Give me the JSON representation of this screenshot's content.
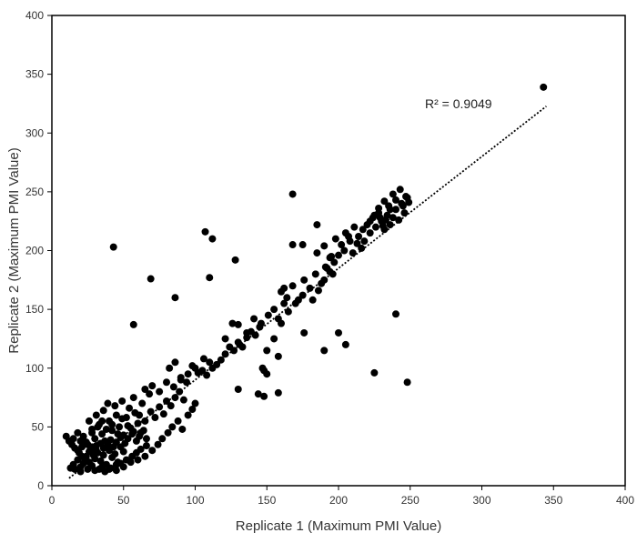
{
  "chart_data": {
    "type": "scatter",
    "title": "",
    "xlabel": "Replicate 1 (Maximum PMI Value)",
    "ylabel": "Replicate 2 (Maximum PMI Value)",
    "xlim": [
      0,
      400
    ],
    "ylim": [
      0,
      400
    ],
    "xticks": [
      "0",
      "50",
      "100",
      "150",
      "200",
      "250",
      "300",
      "350",
      "400"
    ],
    "yticks": [
      "0",
      "50",
      "100",
      "150",
      "200",
      "250",
      "300",
      "350",
      "400"
    ],
    "grid": false,
    "legend": "none",
    "marker_color": "#000000",
    "trendline": {
      "style": "dotted linear",
      "x_range": [
        12,
        345
      ],
      "slope": 0.95,
      "intercept": -5,
      "r2_label": "R² = 0.9049"
    },
    "series": [
      {
        "points": [
          [
            13,
            15
          ],
          [
            15,
            18
          ],
          [
            16,
            14
          ],
          [
            18,
            22
          ],
          [
            20,
            16
          ],
          [
            22,
            19
          ],
          [
            24,
            25
          ],
          [
            26,
            20
          ],
          [
            28,
            17
          ],
          [
            30,
            23
          ],
          [
            32,
            28
          ],
          [
            34,
            21
          ],
          [
            36,
            26
          ],
          [
            38,
            18
          ],
          [
            40,
            30
          ],
          [
            42,
            24
          ],
          [
            44,
            27
          ],
          [
            46,
            20
          ],
          [
            48,
            33
          ],
          [
            50,
            29
          ],
          [
            15,
            40
          ],
          [
            18,
            45
          ],
          [
            20,
            38
          ],
          [
            22,
            42
          ],
          [
            25,
            35
          ],
          [
            28,
            48
          ],
          [
            30,
            40
          ],
          [
            33,
            52
          ],
          [
            35,
            44
          ],
          [
            37,
            38
          ],
          [
            40,
            55
          ],
          [
            42,
            47
          ],
          [
            45,
            60
          ],
          [
            47,
            50
          ],
          [
            50,
            43
          ],
          [
            52,
            58
          ],
          [
            55,
            49
          ],
          [
            58,
            62
          ],
          [
            60,
            53
          ],
          [
            62,
            45
          ],
          [
            18,
            30
          ],
          [
            21,
            33
          ],
          [
            24,
            37
          ],
          [
            27,
            31
          ],
          [
            29,
            26
          ],
          [
            31,
            34
          ],
          [
            34,
            36
          ],
          [
            36,
            32
          ],
          [
            39,
            35
          ],
          [
            41,
            39
          ],
          [
            43,
            33
          ],
          [
            45,
            37
          ],
          [
            48,
            41
          ],
          [
            51,
            36
          ],
          [
            53,
            40
          ],
          [
            56,
            44
          ],
          [
            59,
            38
          ],
          [
            61,
            42
          ],
          [
            64,
            47
          ],
          [
            66,
            40
          ],
          [
            20,
            12
          ],
          [
            25,
            14
          ],
          [
            30,
            13
          ],
          [
            35,
            16
          ],
          [
            40,
            14
          ],
          [
            45,
            18
          ],
          [
            50,
            16
          ],
          [
            55,
            20
          ],
          [
            60,
            22
          ],
          [
            65,
            25
          ],
          [
            26,
            55
          ],
          [
            31,
            60
          ],
          [
            36,
            64
          ],
          [
            39,
            70
          ],
          [
            44,
            68
          ],
          [
            49,
            72
          ],
          [
            54,
            66
          ],
          [
            57,
            75
          ],
          [
            63,
            70
          ],
          [
            68,
            78
          ],
          [
            28,
            45
          ],
          [
            32,
            50
          ],
          [
            35,
            55
          ],
          [
            38,
            48
          ],
          [
            42,
            52
          ],
          [
            46,
            44
          ],
          [
            49,
            57
          ],
          [
            53,
            51
          ],
          [
            57,
            46
          ],
          [
            61,
            60
          ],
          [
            65,
            55
          ],
          [
            69,
            63
          ],
          [
            72,
            58
          ],
          [
            75,
            67
          ],
          [
            78,
            61
          ],
          [
            80,
            72
          ],
          [
            83,
            68
          ],
          [
            86,
            75
          ],
          [
            89,
            80
          ],
          [
            92,
            73
          ],
          [
            70,
            30
          ],
          [
            74,
            35
          ],
          [
            77,
            40
          ],
          [
            81,
            45
          ],
          [
            84,
            50
          ],
          [
            88,
            55
          ],
          [
            91,
            48
          ],
          [
            95,
            60
          ],
          [
            98,
            65
          ],
          [
            100,
            70
          ],
          [
            65,
            82
          ],
          [
            70,
            85
          ],
          [
            75,
            80
          ],
          [
            80,
            88
          ],
          [
            85,
            84
          ],
          [
            90,
            90
          ],
          [
            95,
            95
          ],
          [
            100,
            100
          ],
          [
            105,
            98
          ],
          [
            110,
            105
          ],
          [
            82,
            100
          ],
          [
            86,
            105
          ],
          [
            90,
            92
          ],
          [
            94,
            88
          ],
          [
            98,
            102
          ],
          [
            102,
            96
          ],
          [
            106,
            108
          ],
          [
            108,
            94
          ],
          [
            112,
            100
          ],
          [
            115,
            103
          ],
          [
            118,
            107
          ],
          [
            121,
            112
          ],
          [
            124,
            118
          ],
          [
            127,
            115
          ],
          [
            130,
            122
          ],
          [
            133,
            118
          ],
          [
            136,
            126
          ],
          [
            139,
            131
          ],
          [
            142,
            128
          ],
          [
            145,
            135
          ],
          [
            121,
            125
          ],
          [
            126,
            138
          ],
          [
            131,
            120
          ],
          [
            136,
            130
          ],
          [
            141,
            142
          ],
          [
            146,
            138
          ],
          [
            151,
            145
          ],
          [
            155,
            150
          ],
          [
            158,
            142
          ],
          [
            162,
            155
          ],
          [
            160,
            165
          ],
          [
            164,
            160
          ],
          [
            168,
            170
          ],
          [
            172,
            158
          ],
          [
            176,
            175
          ],
          [
            180,
            168
          ],
          [
            184,
            180
          ],
          [
            188,
            172
          ],
          [
            192,
            185
          ],
          [
            196,
            180
          ],
          [
            150,
            115
          ],
          [
            155,
            125
          ],
          [
            160,
            138
          ],
          [
            165,
            148
          ],
          [
            170,
            155
          ],
          [
            175,
            162
          ],
          [
            182,
            158
          ],
          [
            186,
            166
          ],
          [
            190,
            175
          ],
          [
            194,
            182
          ],
          [
            185,
            198
          ],
          [
            190,
            204
          ],
          [
            195,
            195
          ],
          [
            198,
            210
          ],
          [
            202,
            205
          ],
          [
            205,
            215
          ],
          [
            208,
            208
          ],
          [
            211,
            220
          ],
          [
            214,
            212
          ],
          [
            217,
            218
          ],
          [
            220,
            222
          ],
          [
            222,
            215
          ],
          [
            224,
            228
          ],
          [
            226,
            220
          ],
          [
            228,
            232
          ],
          [
            230,
            225
          ],
          [
            232,
            218
          ],
          [
            234,
            230
          ],
          [
            236,
            222
          ],
          [
            238,
            228
          ],
          [
            240,
            235
          ],
          [
            242,
            226
          ],
          [
            244,
            240
          ],
          [
            246,
            232
          ],
          [
            248,
            245
          ],
          [
            235,
            238
          ],
          [
            232,
            242
          ],
          [
            228,
            236
          ],
          [
            225,
            230
          ],
          [
            222,
            225
          ],
          [
            218,
            208
          ],
          [
            216,
            202
          ],
          [
            213,
            206
          ],
          [
            210,
            198
          ],
          [
            207,
            212
          ],
          [
            204,
            200
          ],
          [
            200,
            196
          ],
          [
            197,
            190
          ],
          [
            194,
            194
          ],
          [
            191,
            186
          ],
          [
            238,
            248
          ],
          [
            240,
            243
          ],
          [
            243,
            252
          ],
          [
            245,
            238
          ],
          [
            247,
            246
          ],
          [
            249,
            241
          ],
          [
            236,
            235
          ],
          [
            233,
            226
          ],
          [
            231,
            221
          ],
          [
            229,
            228
          ],
          [
            10,
            42
          ],
          [
            12,
            38
          ],
          [
            14,
            35
          ],
          [
            16,
            32
          ],
          [
            19,
            28
          ],
          [
            21,
            25
          ],
          [
            23,
            21
          ],
          [
            26,
            29
          ],
          [
            28,
            33
          ],
          [
            31,
            30
          ],
          [
            33,
            14
          ],
          [
            37,
            12
          ],
          [
            41,
            15
          ],
          [
            45,
            13
          ],
          [
            48,
            19
          ],
          [
            52,
            22
          ],
          [
            56,
            25
          ],
          [
            59,
            28
          ],
          [
            62,
            31
          ],
          [
            66,
            34
          ],
          [
            43,
            203
          ],
          [
            57,
            137
          ],
          [
            69,
            176
          ],
          [
            86,
            160
          ],
          [
            107,
            216
          ],
          [
            110,
            177
          ],
          [
            112,
            210
          ],
          [
            128,
            192
          ],
          [
            130,
            137
          ],
          [
            130,
            82
          ],
          [
            144,
            78
          ],
          [
            148,
            76
          ],
          [
            148,
            98
          ],
          [
            150,
            95
          ],
          [
            158,
            79
          ],
          [
            162,
            168
          ],
          [
            168,
            248
          ],
          [
            168,
            205
          ],
          [
            175,
            205
          ],
          [
            185,
            222
          ],
          [
            190,
            115
          ],
          [
            200,
            130
          ],
          [
            205,
            120
          ],
          [
            225,
            96
          ],
          [
            240,
            146
          ],
          [
            248,
            88
          ],
          [
            343,
            339
          ],
          [
            176,
            130
          ],
          [
            158,
            110
          ],
          [
            147,
            100
          ]
        ]
      }
    ]
  }
}
